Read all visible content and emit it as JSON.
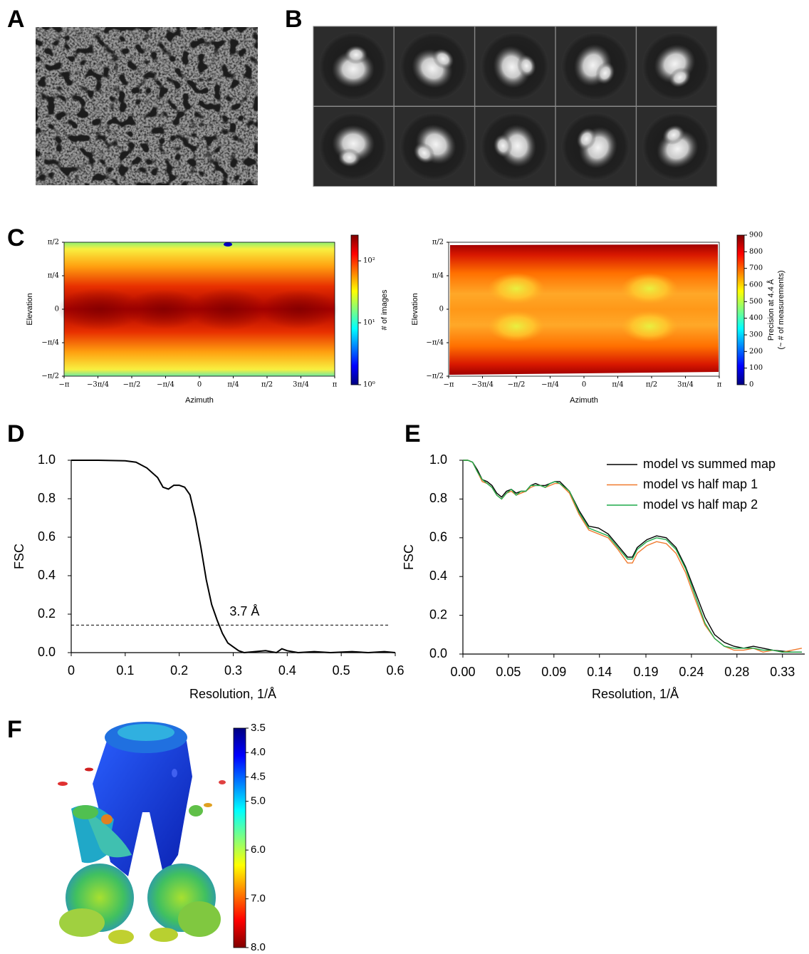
{
  "panel_labels": [
    "A",
    "B",
    "C",
    "D",
    "E",
    "F"
  ],
  "chart_data": [
    {
      "type": "heatmap",
      "ylabel": "Elevation",
      "xlabel": "Azimuth",
      "xlim": [
        -3.1416,
        3.1416
      ],
      "ylim": [
        -1.5708,
        1.5708
      ],
      "xticks": [
        {
          "value": -3.1416,
          "label": "−π"
        },
        {
          "value": -2.3562,
          "label": "−3π/4"
        },
        {
          "value": -1.5708,
          "label": "−π/2"
        },
        {
          "value": -0.7854,
          "label": "−π/4"
        },
        0,
        {
          "value": 0.7854,
          "label": "π/4"
        },
        {
          "value": 1.5708,
          "label": "π/2"
        },
        {
          "value": 2.3562,
          "label": "3π/4"
        },
        {
          "value": 3.1416,
          "label": "π"
        }
      ],
      "yticks": [
        {
          "value": 1.5708,
          "label": "π/2"
        },
        {
          "value": 0.7854,
          "label": "π/4"
        },
        0,
        {
          "value": -0.7854,
          "label": "−π/4"
        },
        {
          "value": -1.5708,
          "label": "−π/2"
        }
      ],
      "colorbar": {
        "label": "# of images",
        "colormap": "jet",
        "log": true,
        "ylim": [
          1,
          260
        ],
        "yticks": [
          {
            "value": 1,
            "label": "10⁰"
          },
          {
            "value": 10,
            "label": "10¹"
          },
          {
            "value": 100,
            "label": "10²"
          }
        ]
      }
    },
    {
      "type": "heatmap",
      "ylabel": "Elevation",
      "xlabel": "Azimuth",
      "xlim": [
        -3.1416,
        3.1416
      ],
      "ylim": [
        -1.5708,
        1.5708
      ],
      "xticks": [
        {
          "value": -3.1416,
          "label": "−π"
        },
        {
          "value": -2.3562,
          "label": "−3π/4"
        },
        {
          "value": -1.5708,
          "label": "−π/2"
        },
        {
          "value": -0.7854,
          "label": "−π/4"
        },
        0,
        {
          "value": 0.7854,
          "label": "π/4"
        },
        {
          "value": 1.5708,
          "label": "π/2"
        },
        {
          "value": 2.3562,
          "label": "3π/4"
        },
        {
          "value": 3.1416,
          "label": "π"
        }
      ],
      "yticks": [
        {
          "value": 1.5708,
          "label": "π/2"
        },
        {
          "value": 0.7854,
          "label": "π/4"
        },
        0,
        {
          "value": -0.7854,
          "label": "−π/4"
        },
        {
          "value": -1.5708,
          "label": "−π/2"
        }
      ],
      "colorbar": {
        "label": [
          "Precision at 4.4 Å",
          "(~ # of measurements)"
        ],
        "colormap": "jet",
        "log": false,
        "ylim": [
          0,
          900
        ],
        "yticks": [
          0,
          100,
          200,
          300,
          400,
          500,
          600,
          700,
          800,
          900
        ]
      }
    },
    {
      "type": "line",
      "ylabel": "FSC",
      "xlabel": "Resolution, 1/Å",
      "color": "#000000",
      "x": [
        0,
        0.05,
        0.1,
        0.12,
        0.14,
        0.16,
        0.17,
        0.18,
        0.19,
        0.2,
        0.21,
        0.22,
        0.23,
        0.24,
        0.25,
        0.26,
        0.27,
        0.28,
        0.29,
        0.3,
        0.31,
        0.32,
        0.34,
        0.36,
        0.38,
        0.39,
        0.4,
        0.42,
        0.45,
        0.48,
        0.52,
        0.55,
        0.58,
        0.6
      ],
      "values": [
        1.0,
        1.0,
        0.997,
        0.99,
        0.96,
        0.91,
        0.86,
        0.85,
        0.87,
        0.87,
        0.86,
        0.82,
        0.7,
        0.55,
        0.38,
        0.25,
        0.17,
        0.1,
        0.05,
        0.03,
        0.01,
        0.0,
        0.005,
        0.01,
        0.0,
        0.02,
        0.01,
        0.0,
        0.005,
        0.0,
        0.005,
        0.0,
        0.005,
        0.0
      ],
      "threshold": 0.143,
      "annotation": "3.7 Å",
      "xlim": [
        0,
        0.6
      ],
      "ylim": [
        0,
        1
      ],
      "xticks": [
        0,
        0.1,
        0.2,
        0.3,
        0.4,
        0.5,
        0.6
      ],
      "yticks": [
        {
          "value": 0,
          "label": "0.0"
        },
        0.2,
        0.4,
        0.6,
        0.8,
        {
          "value": 1,
          "label": "1.0"
        }
      ]
    },
    {
      "type": "line",
      "ylabel": "FSC",
      "xlabel": "Resolution, 1/Å",
      "x": [
        0,
        0.005,
        0.01,
        0.015,
        0.02,
        0.025,
        0.03,
        0.035,
        0.04,
        0.045,
        0.05,
        0.055,
        0.06,
        0.065,
        0.07,
        0.075,
        0.08,
        0.085,
        0.09,
        0.095,
        0.1,
        0.11,
        0.12,
        0.13,
        0.14,
        0.15,
        0.16,
        0.17,
        0.175,
        0.18,
        0.19,
        0.2,
        0.21,
        0.22,
        0.23,
        0.24,
        0.25,
        0.26,
        0.27,
        0.28,
        0.29,
        0.3,
        0.31,
        0.32,
        0.33,
        0.34,
        0.35
      ],
      "series": [
        {
          "name": "model vs summed map",
          "color": "#000000",
          "values": [
            1.0,
            1.0,
            0.99,
            0.95,
            0.9,
            0.89,
            0.87,
            0.83,
            0.81,
            0.84,
            0.85,
            0.83,
            0.84,
            0.84,
            0.87,
            0.88,
            0.87,
            0.87,
            0.88,
            0.89,
            0.89,
            0.84,
            0.74,
            0.66,
            0.65,
            0.62,
            0.56,
            0.5,
            0.5,
            0.55,
            0.59,
            0.61,
            0.6,
            0.55,
            0.45,
            0.32,
            0.19,
            0.1,
            0.06,
            0.04,
            0.03,
            0.04,
            0.03,
            0.02,
            0.015,
            0.01,
            0.01
          ]
        },
        {
          "name": "model vs half map 1",
          "color": "#f07a2e",
          "values": [
            1.0,
            1.0,
            0.99,
            0.94,
            0.89,
            0.88,
            0.86,
            0.82,
            0.8,
            0.83,
            0.84,
            0.82,
            0.83,
            0.84,
            0.86,
            0.87,
            0.87,
            0.86,
            0.87,
            0.88,
            0.88,
            0.83,
            0.72,
            0.64,
            0.62,
            0.6,
            0.54,
            0.47,
            0.47,
            0.52,
            0.56,
            0.58,
            0.57,
            0.52,
            0.42,
            0.28,
            0.15,
            0.08,
            0.04,
            0.02,
            0.02,
            0.03,
            0.01,
            0.02,
            0.01,
            0.02,
            0.03
          ]
        },
        {
          "name": "model vs half map 2",
          "color": "#1faa4a",
          "values": [
            1.0,
            1.0,
            0.99,
            0.94,
            0.9,
            0.88,
            0.86,
            0.82,
            0.8,
            0.83,
            0.85,
            0.82,
            0.84,
            0.84,
            0.87,
            0.87,
            0.87,
            0.86,
            0.88,
            0.89,
            0.88,
            0.84,
            0.73,
            0.65,
            0.63,
            0.61,
            0.55,
            0.49,
            0.49,
            0.54,
            0.58,
            0.6,
            0.59,
            0.54,
            0.44,
            0.3,
            0.16,
            0.08,
            0.04,
            0.03,
            0.03,
            0.03,
            0.02,
            0.02,
            0.01,
            0.01,
            0.01
          ]
        }
      ],
      "xlim": [
        0,
        0.353
      ],
      "ylim": [
        0,
        1
      ],
      "xticks": [
        {
          "value": 0,
          "label": "0.00"
        },
        {
          "value": 0.047,
          "label": "0.05"
        },
        {
          "value": 0.094,
          "label": "0.09"
        },
        {
          "value": 0.141,
          "label": "0.14"
        },
        {
          "value": 0.189,
          "label": "0.19"
        },
        {
          "value": 0.236,
          "label": "0.24"
        },
        {
          "value": 0.283,
          "label": "0.28"
        },
        {
          "value": 0.33,
          "label": "0.33"
        }
      ],
      "yticks": [
        {
          "value": 0,
          "label": "0.0"
        },
        0.2,
        0.4,
        0.6,
        0.8,
        {
          "value": 1,
          "label": "1.0"
        }
      ]
    },
    {
      "type": "colorbar",
      "colormap": "jet",
      "inverted": true,
      "ylim": [
        3.5,
        8.0
      ],
      "yticks": [
        3.5,
        {
          "value": 4,
          "label": "4.0"
        },
        4.5,
        {
          "value": 5,
          "label": "5.0"
        },
        {
          "value": 6,
          "label": "6.0"
        },
        {
          "value": 7,
          "label": "7.0"
        },
        {
          "value": 8,
          "label": "8.0"
        }
      ]
    }
  ]
}
